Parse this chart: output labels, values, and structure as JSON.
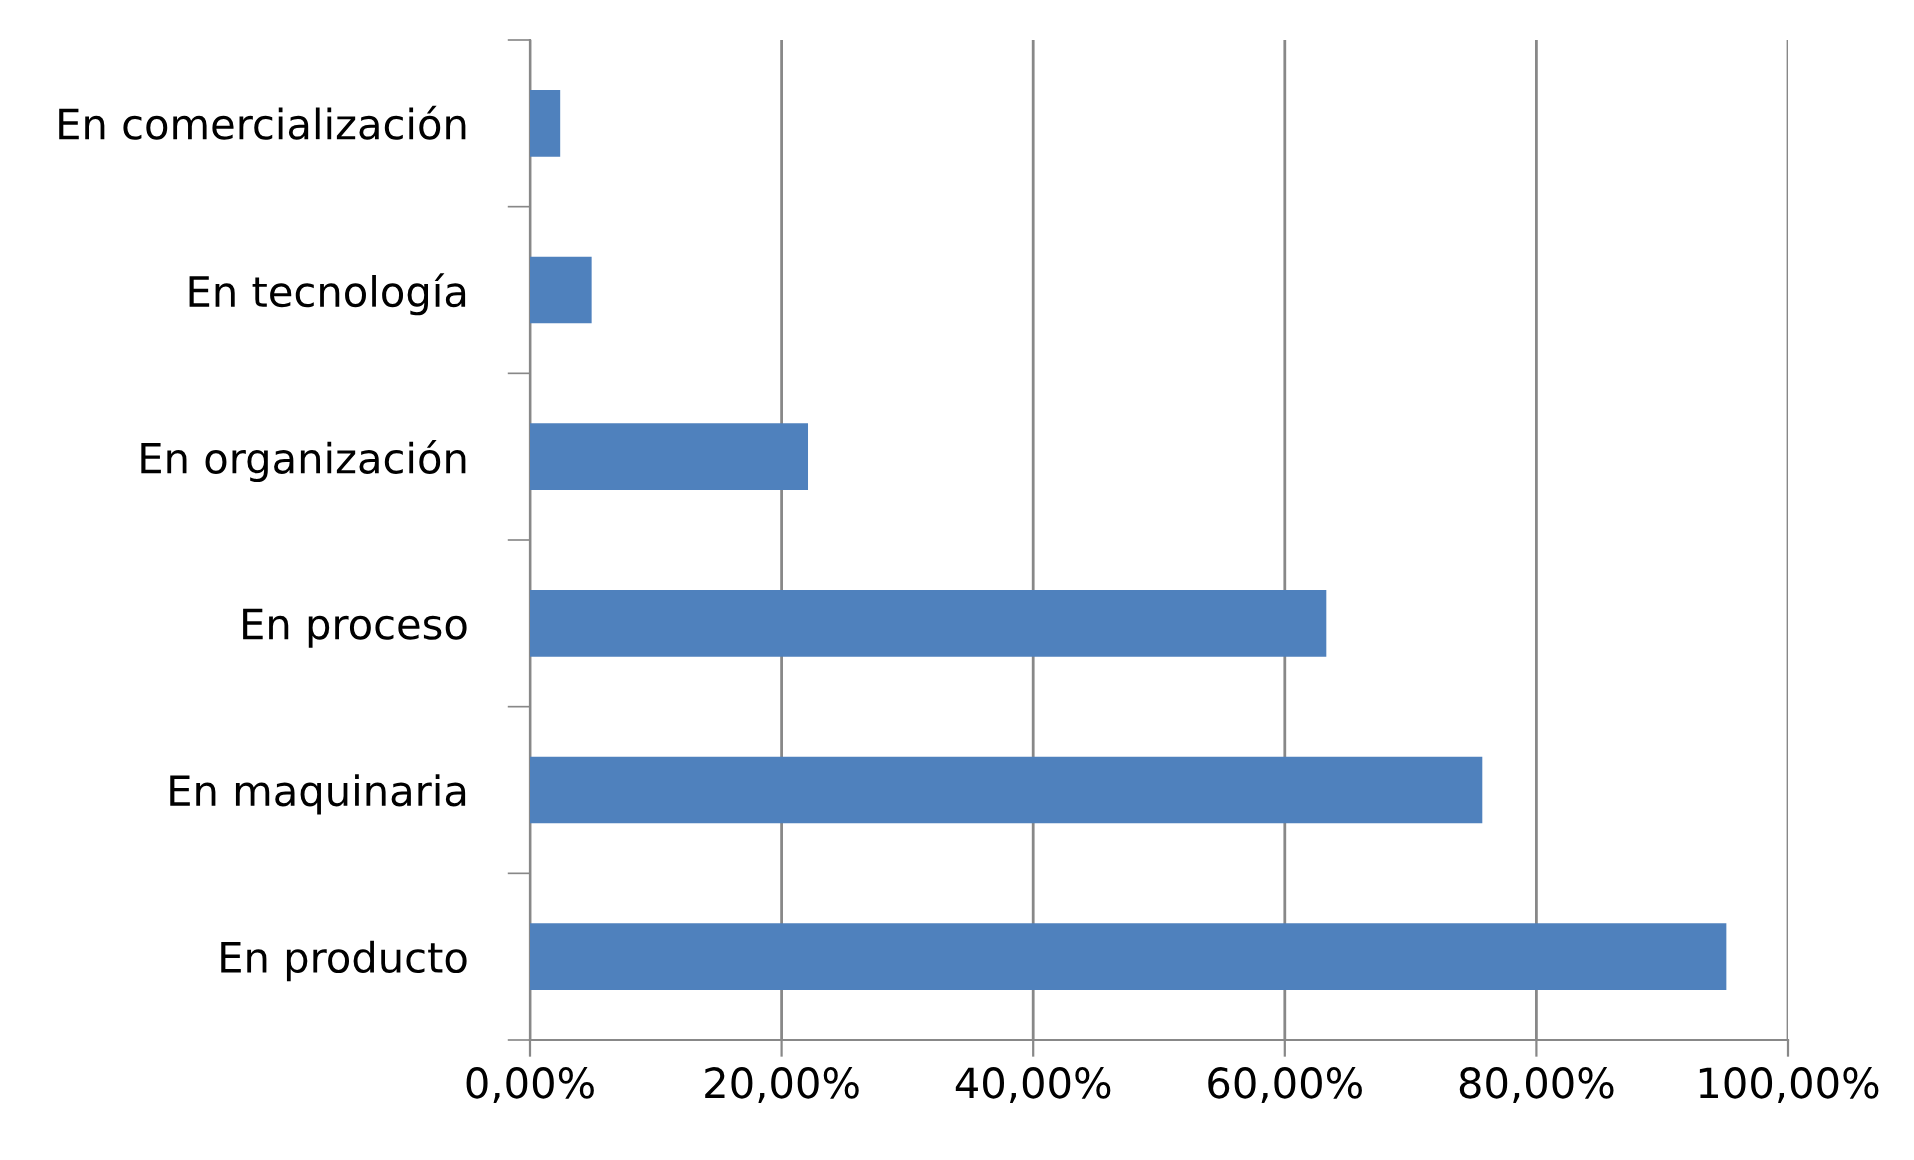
{
  "chart_data": {
    "type": "bar",
    "orientation": "horizontal",
    "categories": [
      "En comercialización",
      "En tecnología",
      "En organización",
      "En proceso",
      "En maquinaria",
      "En producto"
    ],
    "values": [
      2.4,
      4.9,
      22.1,
      63.3,
      75.7,
      95.1
    ],
    "color": "#4f81bd",
    "xlim": [
      0,
      100
    ],
    "xticks": [
      {
        "value": 0,
        "label": "0,00%"
      },
      {
        "value": 20,
        "label": "20,00%"
      },
      {
        "value": 40,
        "label": "40,00%"
      },
      {
        "value": 60,
        "label": "60,00%"
      },
      {
        "value": 80,
        "label": "80,00%"
      },
      {
        "value": 100,
        "label": "100,00%"
      }
    ],
    "grid": "x",
    "legend": false
  }
}
